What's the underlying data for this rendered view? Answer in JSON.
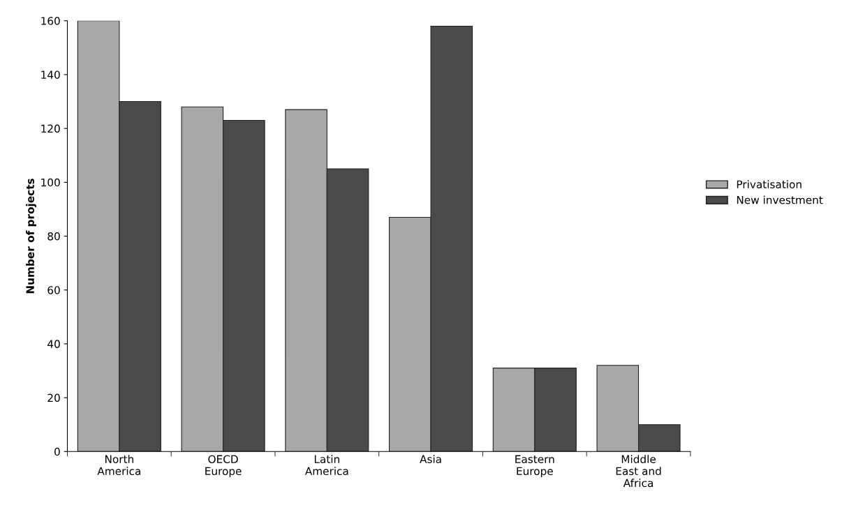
{
  "chart_data": {
    "type": "bar",
    "categories": [
      "North\nAmerica",
      "OECD\nEurope",
      "Latin\nAmerica",
      "Asia",
      "Eastern\nEurope",
      "Middle\nEast and\nAfrica"
    ],
    "series": [
      {
        "name": "Privatisation",
        "color": "#a8a8a8",
        "values": [
          160,
          128,
          127,
          87,
          31,
          32
        ]
      },
      {
        "name": "New investment",
        "color": "#4a4a4a",
        "values": [
          130,
          123,
          105,
          158,
          31,
          10
        ]
      }
    ],
    "ylabel": "Number of projects",
    "ylim": [
      0,
      160
    ],
    "yticks": [
      0,
      20,
      40,
      60,
      80,
      100,
      120,
      140,
      160
    ],
    "grid": false,
    "legend": "right"
  }
}
